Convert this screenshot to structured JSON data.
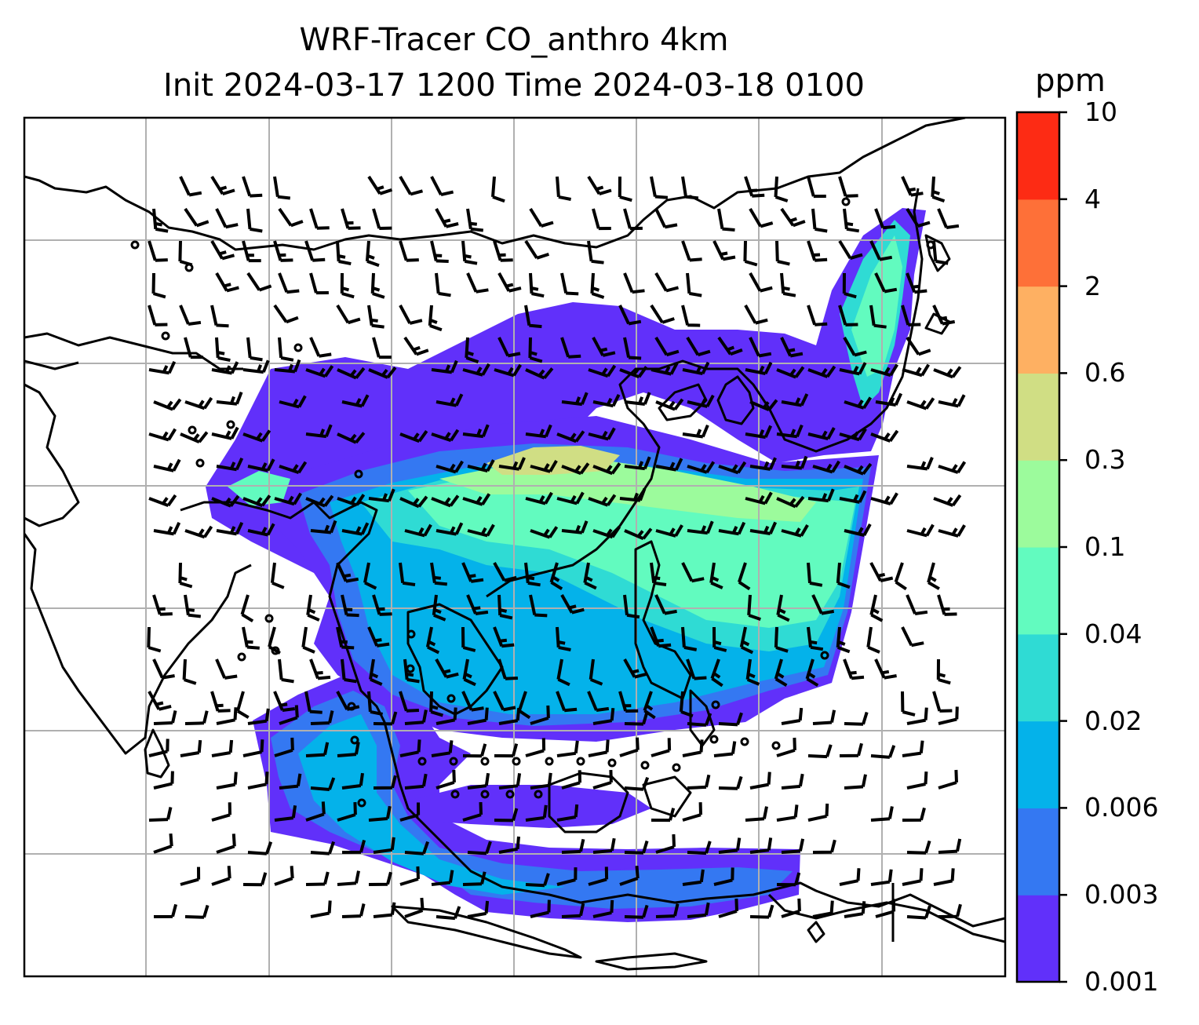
{
  "title": {
    "line1": "WRF-Tracer CO_anthro 4km",
    "line2": "Init 2024-03-17 1200 Time 2024-03-18 0100"
  },
  "map": {
    "projection": "rectangular lat-lon grid with coastlines",
    "gridlines": true,
    "overlay": "wind barbs (calm circles where winds are light)",
    "field": "CO_anthro tracer concentration, filled contours",
    "region": "South / Southeast / East Asia"
  },
  "colorbar": {
    "unit": "ppm",
    "levels": [
      "0.001",
      "0.003",
      "0.006",
      "0.02",
      "0.04",
      "0.1",
      "0.3",
      "0.6",
      "2",
      "4",
      "10"
    ],
    "colors": [
      "#6130fa",
      "#3478f2",
      "#04b2ea",
      "#2fdbd4",
      "#62fbbf",
      "#9cfb9c",
      "#d0de84",
      "#feb062",
      "#fe7038",
      "#fd2b14"
    ]
  }
}
